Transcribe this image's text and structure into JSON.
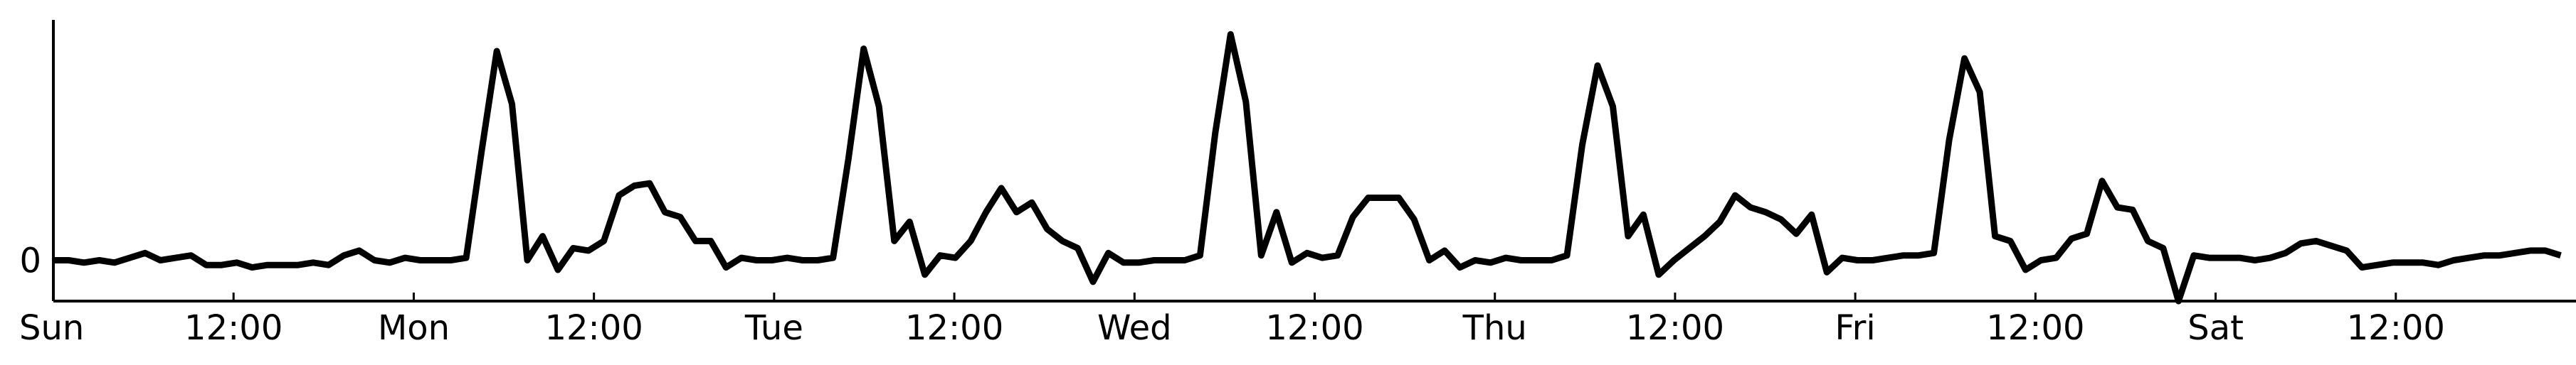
{
  "chart_data": {
    "type": "line",
    "title": "",
    "xlabel": "",
    "ylabel": "",
    "x_tick_labels": [
      "Sun",
      "12:00",
      "Mon",
      "12:00",
      "Tue",
      "12:00",
      "Wed",
      "12:00",
      "Thu",
      "12:00",
      "Fri",
      "12:00",
      "Sat",
      "12:00"
    ],
    "y_tick_labels": [
      "0"
    ],
    "xlim": [
      0,
      168
    ],
    "ylim": [
      -0.17,
      1.0
    ],
    "grid": false,
    "legend": "none",
    "line_color": "#000000",
    "series": [
      {
        "values": [
          0.0,
          0.0,
          -0.01,
          0.0,
          -0.01,
          0.01,
          0.03,
          0.0,
          0.01,
          0.02,
          -0.02,
          -0.02,
          -0.01,
          -0.03,
          -0.02,
          -0.02,
          -0.02,
          -0.01,
          -0.02,
          0.02,
          0.04,
          0.0,
          -0.01,
          0.01,
          0.0,
          0.0,
          0.0,
          0.01,
          0.45,
          0.87,
          0.65,
          0.0,
          0.1,
          -0.04,
          0.05,
          0.04,
          0.08,
          0.27,
          0.31,
          0.32,
          0.2,
          0.18,
          0.08,
          0.08,
          -0.03,
          0.01,
          0.0,
          0.0,
          0.01,
          0.0,
          0.0,
          0.01,
          0.42,
          0.88,
          0.64,
          0.08,
          0.16,
          -0.06,
          0.02,
          0.01,
          0.08,
          0.2,
          0.3,
          0.2,
          0.24,
          0.13,
          0.08,
          0.05,
          -0.09,
          0.03,
          -0.01,
          -0.01,
          0.0,
          0.0,
          0.0,
          0.02,
          0.53,
          0.94,
          0.66,
          0.02,
          0.2,
          -0.01,
          0.03,
          0.01,
          0.02,
          0.18,
          0.26,
          0.26,
          0.26,
          0.17,
          0.0,
          0.04,
          -0.03,
          0.0,
          -0.01,
          0.01,
          0.0,
          0.0,
          0.0,
          0.02,
          0.48,
          0.81,
          0.64,
          0.1,
          0.19,
          -0.06,
          0.0,
          0.05,
          0.1,
          0.16,
          0.27,
          0.22,
          0.2,
          0.17,
          0.11,
          0.19,
          -0.05,
          0.01,
          0.0,
          0.0,
          0.01,
          0.02,
          0.02,
          0.03,
          0.5,
          0.84,
          0.7,
          0.1,
          0.08,
          -0.04,
          0.0,
          0.01,
          0.09,
          0.11,
          0.33,
          0.22,
          0.21,
          0.08,
          0.05,
          -0.17,
          0.02,
          0.01,
          0.01,
          0.01,
          0.0,
          0.01,
          0.03,
          0.07,
          0.08,
          0.06,
          0.04,
          -0.03,
          -0.02,
          -0.01,
          -0.01,
          -0.01,
          -0.02,
          0.0,
          0.01,
          0.02,
          0.02,
          0.03,
          0.04,
          0.04,
          0.02
        ]
      }
    ]
  }
}
